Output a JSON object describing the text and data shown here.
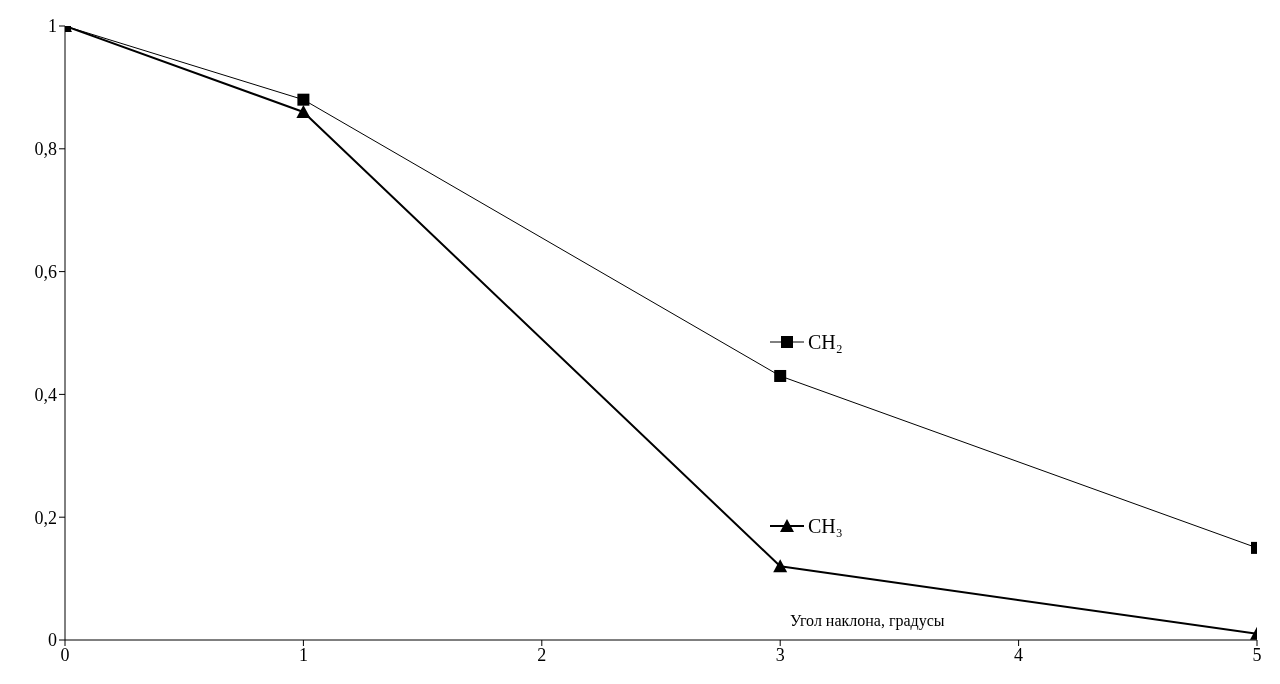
{
  "chart_data": {
    "type": "line",
    "xlabel": "Угол наклона, градусы",
    "x": [
      0,
      1,
      3,
      5
    ],
    "series": [
      {
        "name": "CH₂",
        "color": "#000000",
        "marker": "square",
        "values": [
          1,
          0.88,
          0.43,
          0.15
        ]
      },
      {
        "name": "CH₃",
        "color": "#000000",
        "marker": "triangle",
        "values": [
          1,
          0.86,
          0.12,
          0.01
        ]
      }
    ],
    "xlim": [
      0,
      5
    ],
    "xticks": [
      0,
      1,
      2,
      3,
      4,
      5
    ],
    "ylim": [
      0,
      1
    ],
    "yticks": [
      0,
      {
        "value": 0.2,
        "label": "0,2"
      },
      {
        "value": 0.4,
        "label": "0,4"
      },
      {
        "value": 0.6,
        "label": "0,6"
      },
      {
        "value": 0.8,
        "label": "0,8"
      },
      1
    ],
    "grid": false,
    "legend": "center right",
    "line_style": "solid"
  }
}
